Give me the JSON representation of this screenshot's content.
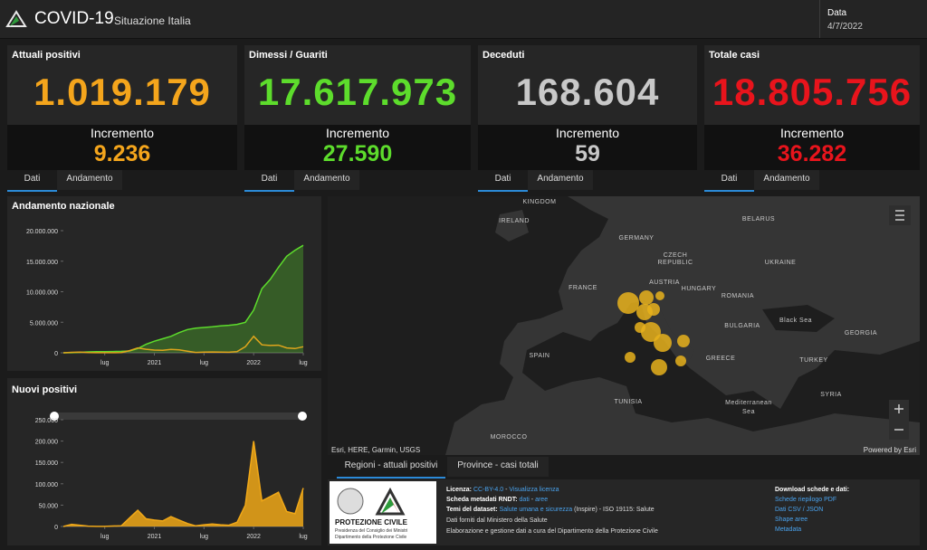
{
  "header": {
    "title": "COVID-19",
    "subtitle": "Situazione Italia",
    "date_label": "Data",
    "date": "4/7/2022"
  },
  "cards": [
    {
      "title": "Attuali positivi",
      "value": "1.019.179",
      "increment_label": "Incremento",
      "increment": "9.236",
      "color": "#f4a51c",
      "tabs": [
        "Dati",
        "Andamento"
      ]
    },
    {
      "title": "Dimessi / Guariti",
      "value": "17.617.973",
      "increment_label": "Incremento",
      "increment": "27.590",
      "color": "#5ddc2c",
      "tabs": [
        "Dati",
        "Andamento"
      ]
    },
    {
      "title": "Deceduti",
      "value": "168.604",
      "increment_label": "Incremento",
      "increment": "59",
      "color": "#c8c8c8",
      "tabs": [
        "Dati",
        "Andamento"
      ]
    },
    {
      "title": "Totale casi",
      "value": "18.805.756",
      "increment_label": "Incremento",
      "increment": "36.282",
      "color": "#e8141c",
      "tabs": [
        "Dati",
        "Andamento"
      ]
    }
  ],
  "chart_data": [
    {
      "type": "line",
      "title": "Andamento nazionale",
      "x": [
        "2020-02",
        "2020-03",
        "2020-04",
        "2020-05",
        "2020-06",
        "2020-07",
        "2020-08",
        "2020-09",
        "2020-10",
        "2020-11",
        "2020-12",
        "2021-01",
        "2021-02",
        "2021-03",
        "2021-04",
        "2021-05",
        "2021-06",
        "2021-07",
        "2021-08",
        "2021-09",
        "2021-10",
        "2021-11",
        "2021-12",
        "2022-01",
        "2022-02",
        "2022-03",
        "2022-04",
        "2022-05",
        "2022-06",
        "2022-07"
      ],
      "series": [
        {
          "color": "#5ddc2c",
          "fill_area": true,
          "values": [
            0,
            10000,
            80000,
            150000,
            190000,
            200000,
            210000,
            230000,
            300000,
            700000,
            1400000,
            1900000,
            2300000,
            2700000,
            3300000,
            3800000,
            4050000,
            4150000,
            4250000,
            4400000,
            4500000,
            4650000,
            5000000,
            7000000,
            10500000,
            12000000,
            14000000,
            15800000,
            16800000,
            17600000
          ]
        },
        {
          "color": "#e0a51c",
          "fill_area": false,
          "values": [
            0,
            80000,
            100000,
            50000,
            20000,
            13000,
            20000,
            45000,
            350000,
            800000,
            580000,
            440000,
            420000,
            560000,
            470000,
            250000,
            60000,
            120000,
            130000,
            100000,
            90000,
            200000,
            1000000,
            2700000,
            1300000,
            1200000,
            1250000,
            800000,
            700000,
            1000000
          ]
        }
      ],
      "xlim": [
        "2020-02",
        "2022-07"
      ],
      "xticks": [
        {
          "value": "2020-07",
          "label": "lug"
        },
        {
          "value": "2021-01",
          "label": "2021"
        },
        {
          "value": "2021-07",
          "label": "lug"
        },
        {
          "value": "2022-01",
          "label": "2022"
        },
        {
          "value": "2022-07",
          "label": "lug"
        }
      ],
      "ylim": [
        0,
        20000000
      ],
      "yticks": [
        0,
        {
          "value": 5000000,
          "label": "5.000.000"
        },
        {
          "value": 10000000,
          "label": "10.000.000"
        },
        {
          "value": 15000000,
          "label": "15.000.000"
        },
        {
          "value": 20000000,
          "label": "20.000.000"
        }
      ]
    },
    {
      "type": "area",
      "title": "Nuovi positivi",
      "x": [
        "2020-02",
        "2020-03",
        "2020-04",
        "2020-05",
        "2020-06",
        "2020-07",
        "2020-08",
        "2020-09",
        "2020-10",
        "2020-11",
        "2020-12",
        "2021-01",
        "2021-02",
        "2021-03",
        "2021-04",
        "2021-05",
        "2021-06",
        "2021-07",
        "2021-08",
        "2021-09",
        "2021-10",
        "2021-11",
        "2021-12",
        "2022-01",
        "2022-02",
        "2022-03",
        "2022-04",
        "2022-05",
        "2022-06",
        "2022-07"
      ],
      "series": [
        {
          "color": "#f0a818",
          "fill_area": true,
          "values": [
            0,
            5000,
            3000,
            800,
            300,
            200,
            1000,
            1500,
            20000,
            38000,
            18000,
            15000,
            13000,
            23000,
            15000,
            7000,
            1500,
            4000,
            6000,
            4000,
            3000,
            10000,
            50000,
            200000,
            60000,
            70000,
            80000,
            35000,
            30000,
            90000
          ]
        }
      ],
      "xlim": [
        "2020-02",
        "2022-07"
      ],
      "xticks": [
        {
          "value": "2020-07",
          "label": "lug"
        },
        {
          "value": "2021-01",
          "label": "2021"
        },
        {
          "value": "2021-07",
          "label": "lug"
        },
        {
          "value": "2022-01",
          "label": "2022"
        },
        {
          "value": "2022-07",
          "label": "lug"
        }
      ],
      "ylim": [
        0,
        250000
      ],
      "yticks": [
        0,
        {
          "value": 50000,
          "label": "50.000"
        },
        {
          "value": 100000,
          "label": "100.000"
        },
        {
          "value": 150000,
          "label": "150.000"
        },
        {
          "value": 200000,
          "label": "200.000"
        },
        {
          "value": 250000,
          "label": "250.000"
        }
      ]
    }
  ],
  "map": {
    "labels": [
      "KINGDOM",
      "IRELAND",
      "GERMANY",
      "BELARUS",
      "CZECH",
      "REPUBLIC",
      "UKRAINE",
      "FRANCE",
      "AUSTRIA",
      "HUNGARY",
      "ROMANIA",
      "BULGARIA",
      "Black Sea",
      "GEORGIA",
      "SPAIN",
      "GREECE",
      "TURKEY",
      "TUNISIA",
      "Mediterranean",
      "Sea",
      "SYRIA",
      "MOROCCO"
    ],
    "attribution": "Esri, HERE, Garmin, USGS",
    "powered_by": "Powered by Esri",
    "tabs": [
      "Regioni - attuali positivi",
      "Province - casi totali"
    ]
  },
  "footer": {
    "logo": [
      "PROTEZIONE CIVILE",
      "Presidenza del Consiglio dei Ministri",
      "Dipartimento della Protezione Civile"
    ],
    "license_label": "Licenza:",
    "license": "CC-BY-4.0",
    "license_sep": "-",
    "license_link": "Visualizza licenza",
    "rndt_label": "Scheda metadati RNDT:",
    "rndt_links": [
      "dati",
      "aree"
    ],
    "rndt_sep": "-",
    "themes_label": "Temi del dataset:",
    "themes_link": "Salute umana e sicurezza",
    "themes_rest": "(Inspire) - ISO 19115: Salute",
    "source": "Dati forniti dal Ministero della Salute",
    "processing": "Elaborazione e gestione dati a cura del Dipartimento della Protezione Civile",
    "download_title": "Download schede e dati:",
    "downloads": [
      "Schede riepilogo PDF",
      "Dati CSV / JSON",
      "Shape aree",
      "Metadata"
    ]
  }
}
